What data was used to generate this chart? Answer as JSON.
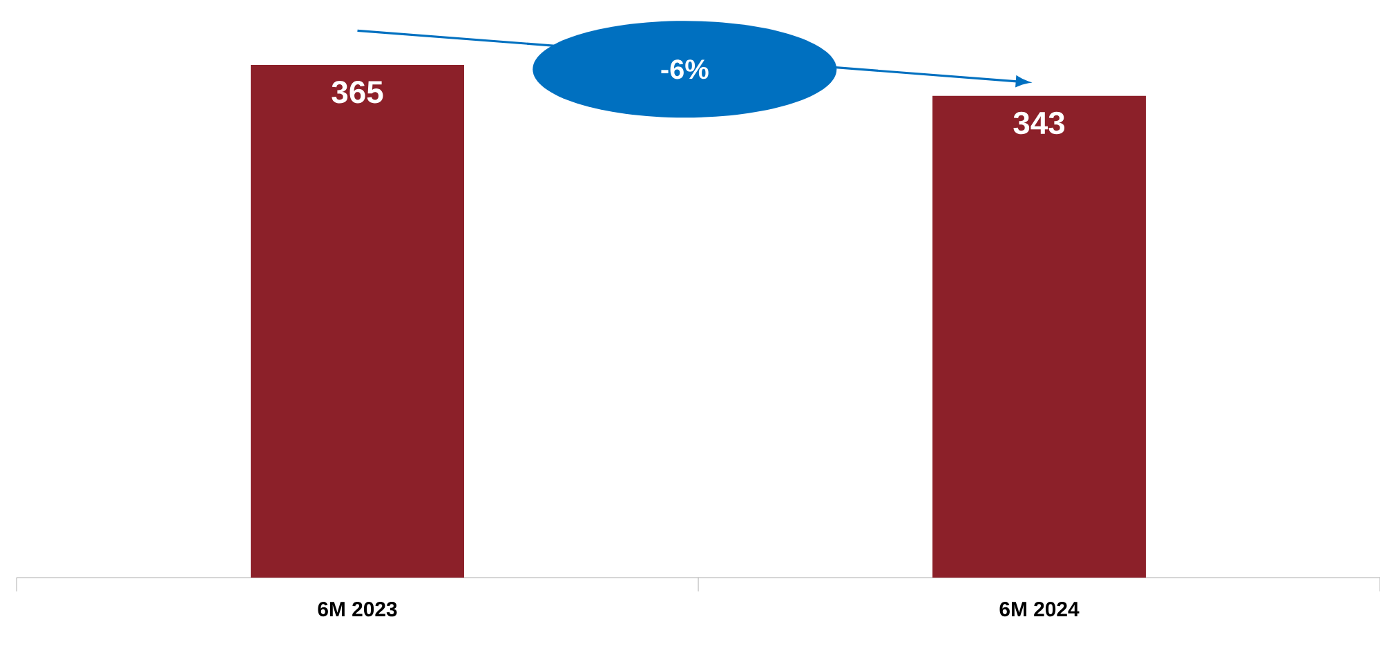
{
  "chart_data": {
    "type": "bar",
    "categories": [
      "6M 2023",
      "6M 2024"
    ],
    "values": [
      365,
      343
    ],
    "color": "#8c2029",
    "data_labels": true,
    "annotations": [
      "-6%"
    ]
  }
}
